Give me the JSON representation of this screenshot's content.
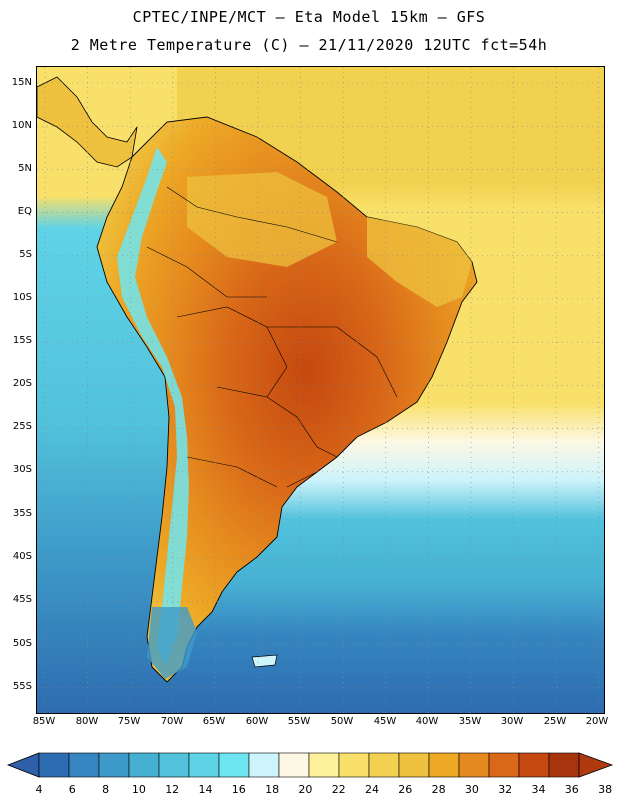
{
  "header": {
    "title_line1": "CPTEC/INPE/MCT –  Eta Model 15km – GFS",
    "title_line2": "2 Metre Temperature (C) – 21/11/2020 12UTC fct=54h"
  },
  "axes": {
    "lat_labels": [
      "15N",
      "10N",
      "5N",
      "EQ",
      "5S",
      "10S",
      "15S",
      "20S",
      "25S",
      "30S",
      "35S",
      "40S",
      "45S",
      "50S",
      "55S"
    ],
    "lon_labels": [
      "85W",
      "80W",
      "75W",
      "70W",
      "65W",
      "60W",
      "55W",
      "50W",
      "45W",
      "40W",
      "35W",
      "30W",
      "25W",
      "20W"
    ]
  },
  "colorbar": {
    "labels": [
      "4",
      "6",
      "8",
      "10",
      "12",
      "14",
      "16",
      "18",
      "20",
      "22",
      "24",
      "26",
      "28",
      "30",
      "32",
      "34",
      "36",
      "38"
    ],
    "colors": [
      "#2d6cb0",
      "#3585c0",
      "#3e9bc9",
      "#46b0d2",
      "#52c2dc",
      "#5fd3e6",
      "#6ee6f2",
      "#cdf3fb",
      "#fdf8e4",
      "#fdf19a",
      "#f8e06a",
      "#f3d150",
      "#eec13e",
      "#eda825",
      "#e58a1e",
      "#d96818",
      "#c44810",
      "#a8340e"
    ],
    "under_color": "#2f5fa8",
    "over_color": "#b03a10"
  },
  "map_colors": {
    "ocean_north": "#f3d150",
    "ocean_tropical": "#f8e06a",
    "ocean_south_mid": "#52c2dc",
    "ocean_south_cold": "#3585c0",
    "ocean_south_deep": "#2d6cb0",
    "land_hot": "#c44810",
    "land_warm": "#e58a1e",
    "land_mild": "#eec13e",
    "andes_cold": "#6ee6f2",
    "coast_line": "#000000",
    "grid_line": "#888888"
  }
}
